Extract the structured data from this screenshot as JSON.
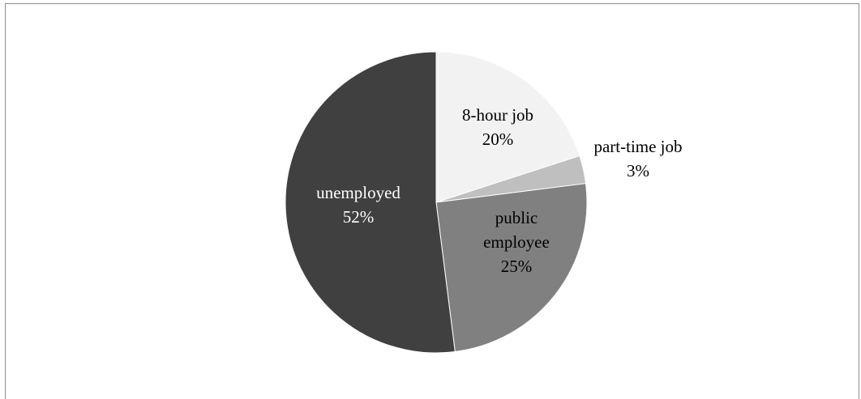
{
  "chart_data": {
    "type": "pie",
    "title": "",
    "start_angle_deg": 0,
    "direction": "clockwise",
    "slices": [
      {
        "label": "8-hour job",
        "value": 20,
        "value_label": "20%",
        "color": "#f2f2f2",
        "text_color": "#000000"
      },
      {
        "label": "part-time job",
        "value": 3,
        "value_label": "3%",
        "color": "#bfbfbf",
        "text_color": "#000000"
      },
      {
        "label": "public employee",
        "value": 25,
        "value_label": "25%",
        "color": "#808080",
        "text_color": "#000000"
      },
      {
        "label": "unemployed",
        "value": 52,
        "value_label": "52%",
        "color": "#404040",
        "text_color": "#ffffff"
      }
    ],
    "legend": "none",
    "data_labels": "category and percentage"
  }
}
